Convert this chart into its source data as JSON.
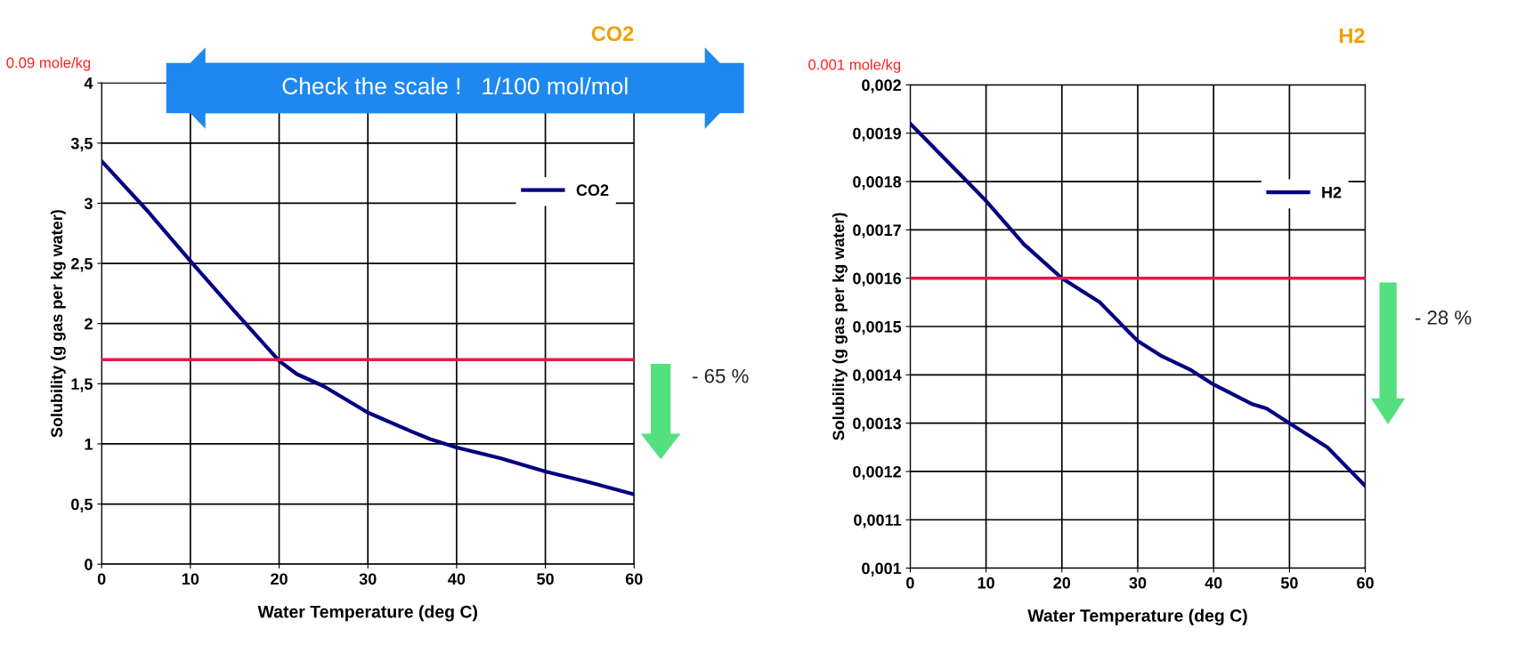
{
  "chart_data": [
    {
      "type": "line",
      "title": "CO2",
      "xlabel": "Water Temperature (deg C)",
      "ylabel": "Solubility (g gas per kg water)",
      "x": [
        0,
        5,
        10,
        15,
        20,
        22,
        25,
        30,
        35,
        37,
        40,
        45,
        50,
        55,
        60
      ],
      "series": [
        {
          "name": "CO2",
          "color": "#000080",
          "values": [
            3.35,
            2.95,
            2.52,
            2.1,
            1.69,
            1.58,
            1.48,
            1.26,
            1.1,
            1.04,
            0.97,
            0.88,
            0.77,
            0.68,
            0.58
          ]
        }
      ],
      "xlim": [
        0,
        60
      ],
      "xticks": [
        0,
        10,
        20,
        30,
        40,
        50,
        60
      ],
      "ylim": [
        0,
        4
      ],
      "yticks": [
        0,
        {
          "value": 0.5,
          "label": "0,5"
        },
        1,
        {
          "value": 1.5,
          "label": "1,5"
        },
        2,
        {
          "value": 2.5,
          "label": "2,5"
        },
        3,
        {
          "value": 3.5,
          "label": "3,5"
        },
        4
      ],
      "ref_lines": [
        {
          "axis": "y",
          "value": 1.7,
          "color": "#e8174a"
        }
      ],
      "annotations": [
        "0.09 mole/kg",
        "Check the scale !   1/100 mol/mol",
        "- 65 %"
      ],
      "grid": true,
      "legend": "top right"
    },
    {
      "type": "line",
      "title": "H2",
      "xlabel": "Water Temperature (deg C)",
      "ylabel": "Solubility (g gas per kg water)",
      "x": [
        0,
        5,
        10,
        15,
        20,
        25,
        30,
        33,
        37,
        40,
        45,
        47,
        50,
        55,
        60
      ],
      "series": [
        {
          "name": "H2",
          "color": "#000080",
          "values": [
            0.00192,
            0.00184,
            0.00176,
            0.00167,
            0.0016,
            0.00155,
            0.00147,
            0.00144,
            0.00141,
            0.00138,
            0.00134,
            0.00133,
            0.0013,
            0.00125,
            0.00117
          ]
        }
      ],
      "xlim": [
        0,
        60
      ],
      "xticks": [
        0,
        10,
        20,
        30,
        40,
        50,
        60
      ],
      "ylim": [
        0.001,
        0.002
      ],
      "yticks": [
        {
          "value": 0.001,
          "label": "0,001"
        },
        {
          "value": 0.0011,
          "label": "0,0011"
        },
        {
          "value": 0.0012,
          "label": "0,0012"
        },
        {
          "value": 0.0013,
          "label": "0,0013"
        },
        {
          "value": 0.0014,
          "label": "0,0014"
        },
        {
          "value": 0.0015,
          "label": "0,0015"
        },
        {
          "value": 0.0016,
          "label": "0,0016"
        },
        {
          "value": 0.0017,
          "label": "0,0017"
        },
        {
          "value": 0.0018,
          "label": "0,0018"
        },
        {
          "value": 0.0019,
          "label": "0,0019"
        },
        {
          "value": 0.002,
          "label": "0,002"
        }
      ],
      "ref_lines": [
        {
          "axis": "y",
          "value": 0.0016,
          "color": "#e8174a"
        }
      ],
      "annotations": [
        "0.001 mole/kg",
        "- 28 %"
      ],
      "grid": true,
      "legend": "top right"
    }
  ]
}
